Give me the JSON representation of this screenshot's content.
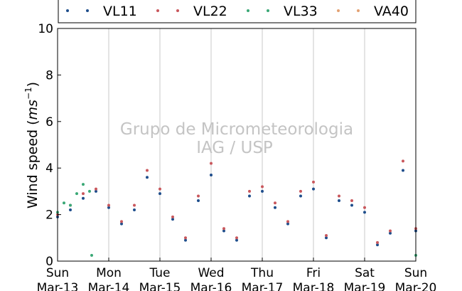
{
  "chart_data": {
    "type": "scatter",
    "title": "",
    "xlabel": "",
    "ylabel": "Wind speed",
    "ylabel_unit": "ms",
    "ylabel_unit_exp": "−1",
    "ylim": [
      0,
      10
    ],
    "yticks": [
      0,
      2,
      4,
      6,
      8,
      10
    ],
    "xlim": [
      "2016-03-13",
      "2016-03-20"
    ],
    "grid": "vertical",
    "legend": "top",
    "watermark": [
      "Grupo de Micrometeorologia",
      "IAG / USP"
    ],
    "xticks": [
      {
        "x": "2016-03-13",
        "day": "Sun",
        "date": "Mar-13"
      },
      {
        "x": "2016-03-14",
        "day": "Mon",
        "date": "Mar-14"
      },
      {
        "x": "2016-03-15",
        "day": "Tue",
        "date": "Mar-15"
      },
      {
        "x": "2016-03-16",
        "day": "Wed",
        "date": "Mar-16"
      },
      {
        "x": "2016-03-17",
        "day": "Thu",
        "date": "Mar-17"
      },
      {
        "x": "2016-03-18",
        "day": "Fri",
        "date": "Mar-18"
      },
      {
        "x": "2016-03-19",
        "day": "Sat",
        "date": "Mar-19"
      },
      {
        "x": "2016-03-20",
        "day": "Sun",
        "date": "Mar-20"
      }
    ],
    "series": [
      {
        "name": "VL11",
        "color": "#1f4e8c",
        "x": [
          "2016-03-13T00:00",
          "2016-03-13T06:00",
          "2016-03-13T12:00",
          "2016-03-13T18:00",
          "2016-03-14T00:00",
          "2016-03-14T06:00",
          "2016-03-14T12:00",
          "2016-03-14T18:00",
          "2016-03-15T00:00",
          "2016-03-15T06:00",
          "2016-03-15T12:00",
          "2016-03-15T18:00",
          "2016-03-16T00:00",
          "2016-03-16T06:00",
          "2016-03-16T12:00",
          "2016-03-16T18:00",
          "2016-03-17T00:00",
          "2016-03-17T06:00",
          "2016-03-17T12:00",
          "2016-03-17T18:00",
          "2016-03-18T00:00",
          "2016-03-18T06:00",
          "2016-03-18T12:00",
          "2016-03-18T18:00",
          "2016-03-19T00:00",
          "2016-03-19T06:00",
          "2016-03-19T12:00",
          "2016-03-19T18:00",
          "2016-03-20T00:00"
        ],
        "y": [
          1.9,
          2.2,
          2.7,
          3.0,
          2.3,
          1.6,
          2.2,
          3.6,
          2.9,
          1.8,
          0.9,
          2.6,
          3.7,
          1.3,
          0.9,
          2.8,
          3.0,
          2.3,
          1.6,
          2.8,
          3.1,
          1.0,
          2.6,
          2.4,
          2.1,
          0.7,
          1.2,
          3.9,
          1.3
        ]
      },
      {
        "name": "VL22",
        "color": "#c9575c",
        "x": [
          "2016-03-13T00:00",
          "2016-03-13T06:00",
          "2016-03-13T12:00",
          "2016-03-13T18:00",
          "2016-03-14T00:00",
          "2016-03-14T06:00",
          "2016-03-14T12:00",
          "2016-03-14T18:00",
          "2016-03-15T00:00",
          "2016-03-15T06:00",
          "2016-03-15T12:00",
          "2016-03-15T18:00",
          "2016-03-16T00:00",
          "2016-03-16T06:00",
          "2016-03-16T12:00",
          "2016-03-16T18:00",
          "2016-03-17T00:00",
          "2016-03-17T06:00",
          "2016-03-17T12:00",
          "2016-03-17T18:00",
          "2016-03-18T00:00",
          "2016-03-18T06:00",
          "2016-03-18T12:00",
          "2016-03-18T18:00",
          "2016-03-19T00:00",
          "2016-03-19T06:00",
          "2016-03-19T12:00",
          "2016-03-19T18:00",
          "2016-03-20T00:00"
        ],
        "y": [
          2.0,
          2.4,
          2.9,
          3.1,
          2.4,
          1.7,
          2.4,
          3.9,
          3.1,
          1.9,
          1.0,
          2.8,
          4.2,
          1.4,
          1.0,
          3.0,
          3.2,
          2.5,
          1.7,
          3.0,
          3.4,
          1.1,
          2.8,
          2.6,
          2.3,
          0.8,
          1.3,
          4.3,
          1.4
        ]
      },
      {
        "name": "VL33",
        "color": "#3aa876",
        "x": [
          "2016-03-13T00:00",
          "2016-03-13T03:00",
          "2016-03-13T06:00",
          "2016-03-13T09:00",
          "2016-03-13T12:00",
          "2016-03-13T15:00",
          "2016-03-13T16:00",
          "2016-03-20T00:00"
        ],
        "y": [
          2.1,
          2.5,
          2.4,
          2.9,
          3.3,
          3.0,
          0.25,
          0.25
        ]
      },
      {
        "name": "VA40",
        "color": "#e3a173",
        "x": [],
        "y": []
      }
    ]
  }
}
